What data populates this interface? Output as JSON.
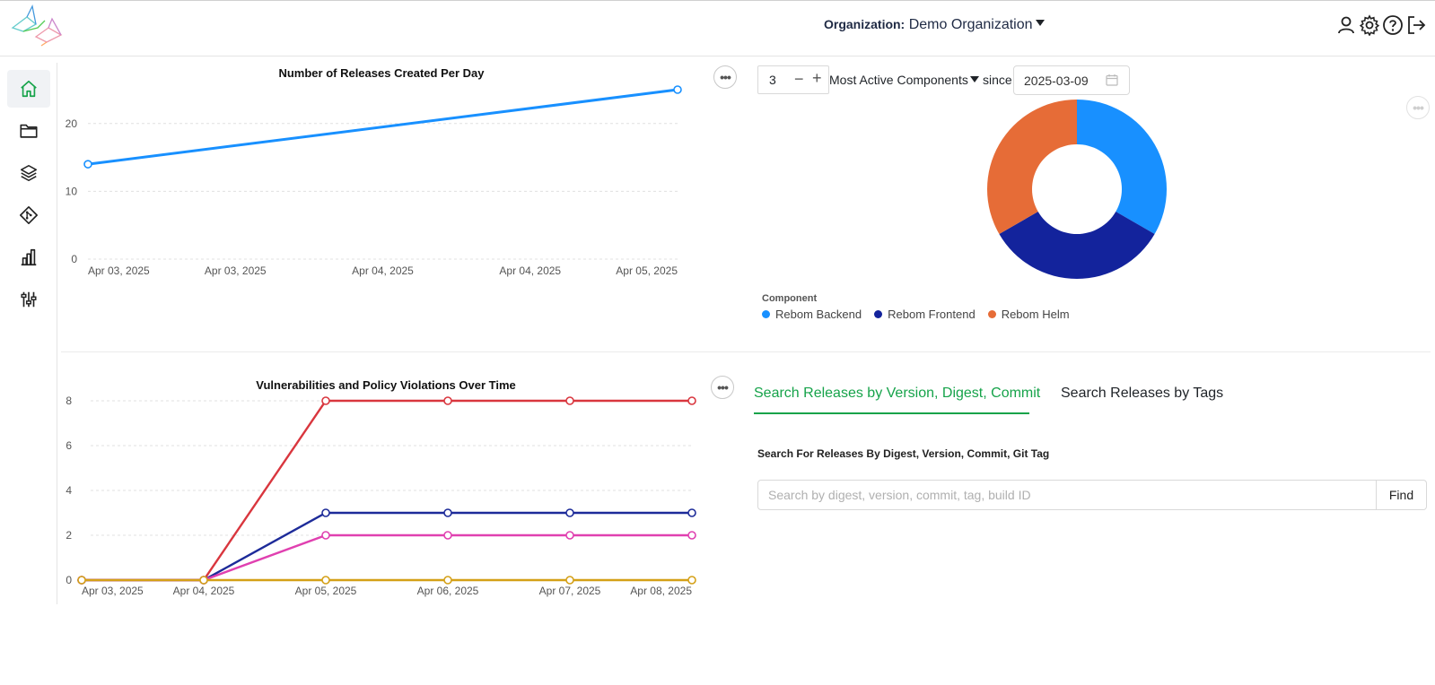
{
  "header": {
    "org_label": "Organization:",
    "org_value": "Demo Organization",
    "icons": [
      "user-icon",
      "gear-icon",
      "help-icon",
      "logout-icon"
    ]
  },
  "sidebar": {
    "items": [
      {
        "icon": "home-icon",
        "active": true
      },
      {
        "icon": "folder-icon",
        "active": false
      },
      {
        "icon": "layers-icon",
        "active": false
      },
      {
        "icon": "git-icon",
        "active": false
      },
      {
        "icon": "bar-chart-icon",
        "active": false
      },
      {
        "icon": "sliders-icon",
        "active": false
      }
    ]
  },
  "releases_chart": {
    "more_label": "•••"
  },
  "vuln_chart": {
    "more_label": "•••"
  },
  "components": {
    "count": "3",
    "minus": "−",
    "plus": "+",
    "select_label": "Most Active Components",
    "since_label": "since",
    "since_date": "2025-03-09",
    "legend_title": "Component",
    "more_label": "•••"
  },
  "search": {
    "tab_active": "Search Releases by Version, Digest, Commit",
    "tab_other": "Search Releases by Tags",
    "label": "Search For Releases By Digest, Version, Commit, Git Tag",
    "placeholder": "Search by digest, version, commit, tag, build ID",
    "find": "Find"
  },
  "chart_data": [
    {
      "type": "line",
      "title": "Number of Releases Created Per Day",
      "x": [
        "Apr 03, 2025",
        "Apr 05, 2025"
      ],
      "x_tick_labels": [
        "Apr 03, 2025",
        "Apr 03, 2025",
        "Apr 04, 2025",
        "Apr 04, 2025",
        "Apr 05, 2025"
      ],
      "series": [
        {
          "values": [
            14,
            25
          ],
          "color": "#1890ff"
        }
      ],
      "ylim": [
        0,
        25
      ],
      "y_ticks": [
        0,
        10,
        20
      ],
      "grid": true
    },
    {
      "type": "line",
      "title": "Vulnerabilities and Policy Violations Over Time",
      "x": [
        "Apr 03, 2025",
        "Apr 04, 2025",
        "Apr 05, 2025",
        "Apr 06, 2025",
        "Apr 07, 2025",
        "Apr 08, 2025"
      ],
      "series": [
        {
          "values": [
            0,
            0,
            8,
            8,
            8,
            8
          ],
          "color": "#d9363e"
        },
        {
          "values": [
            0,
            0,
            3,
            3,
            3,
            3
          ],
          "color": "#1d2b99"
        },
        {
          "values": [
            0,
            0,
            2,
            2,
            2,
            2
          ],
          "color": "#e040b0"
        },
        {
          "values": [
            0,
            0,
            0,
            0,
            0,
            0
          ],
          "color": "#d4a017"
        }
      ],
      "ylim": [
        0,
        8
      ],
      "y_ticks": [
        0,
        2,
        4,
        6,
        8
      ],
      "grid": true
    },
    {
      "type": "pie",
      "categories": [
        "Rebom Backend",
        "Rebom Frontend",
        "Rebom Helm"
      ],
      "values": [
        1,
        1,
        1
      ],
      "colors": [
        "#1890ff",
        "#13239c",
        "#e66c37"
      ],
      "donut": true,
      "legend": "bottom-left"
    }
  ]
}
